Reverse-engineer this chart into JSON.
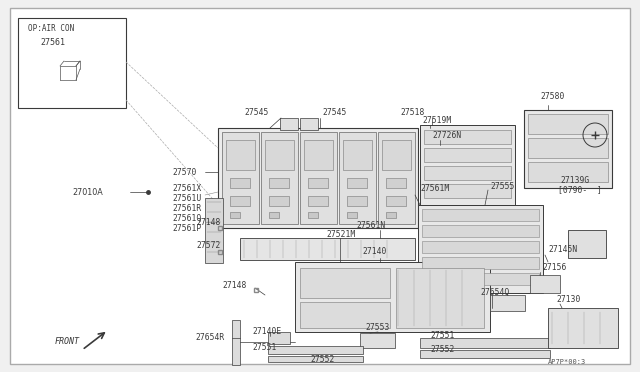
{
  "bg_color": "#f0f0f0",
  "white": "#ffffff",
  "lc": "#3a3a3a",
  "lc_light": "#888888",
  "fs": 5.8,
  "fs_small": 5.2,
  "bottom_code": "AP7P*00:3",
  "inset_label": "OP:AIR CON",
  "inset_part": "27561",
  "note": "27139G\n[0790-  ]",
  "front_text": "FRONT"
}
